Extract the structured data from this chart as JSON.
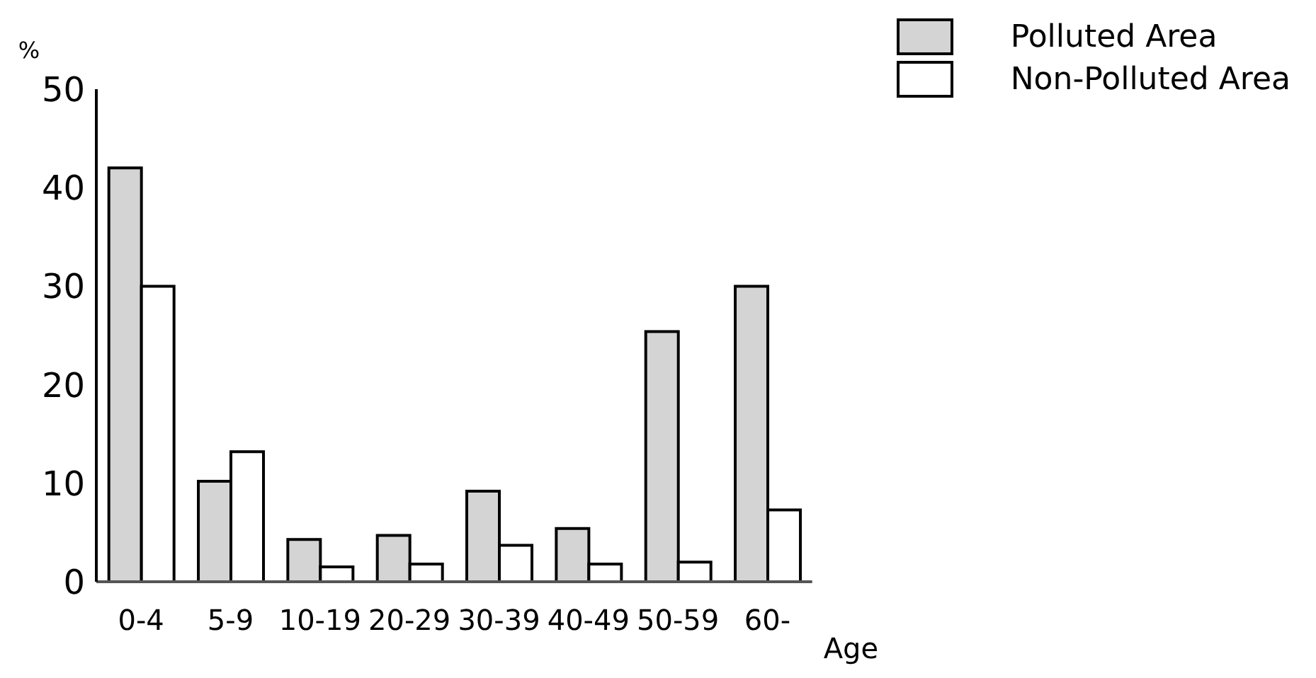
{
  "chart_data": {
    "type": "bar",
    "xlabel": "Age",
    "ylabel": "%",
    "categories": [
      "0-4",
      "5-9",
      "10-19",
      "20-29",
      "30-39",
      "40-49",
      "50-59",
      "60-"
    ],
    "series": [
      {
        "name": "Polluted Area",
        "color": "#d4d4d4",
        "values": [
          42,
          10.2,
          4.3,
          4.7,
          9.2,
          5.4,
          25.4,
          30
        ]
      },
      {
        "name": "Non-Polluted Area",
        "color": "#ffffff",
        "values": [
          30,
          13.2,
          1.5,
          1.8,
          3.7,
          1.8,
          2,
          7.3
        ]
      }
    ],
    "ylim": [
      0,
      50
    ],
    "yticks": [
      0,
      10,
      20,
      30,
      40,
      50
    ],
    "legend": "top right"
  }
}
